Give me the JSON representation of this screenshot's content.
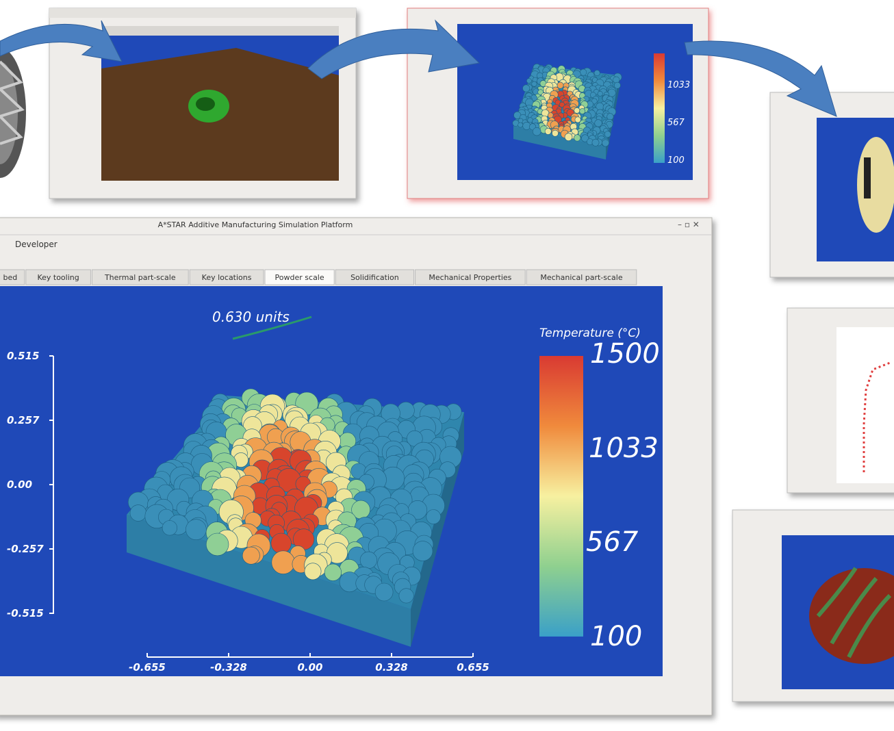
{
  "window": {
    "title": "A*STAR Additive Manufacturing Simulation Platform",
    "menu": [
      "Developer"
    ],
    "tabs": [
      "bed",
      "Key tooling",
      "Thermal part-scale",
      "Key locations",
      "Powder scale",
      "Solidification",
      "Mechanical Properties",
      "Mechanical part-scale"
    ]
  },
  "viewport": {
    "scale_label": "0.630 units",
    "y_axis_labels": [
      "0.515",
      "0.257",
      "0.00",
      "-0.257",
      "-0.515"
    ],
    "x_axis_labels": [
      "-0.655",
      "-0.328",
      "0.00",
      "0.328",
      "0.655"
    ],
    "colorbar": {
      "title": "Temperature (°C)",
      "labels": [
        "1500",
        "1033",
        "567",
        "100"
      ]
    }
  },
  "thumbnail": {
    "colorbar_labels": [
      "1033",
      "567",
      "100"
    ]
  }
}
